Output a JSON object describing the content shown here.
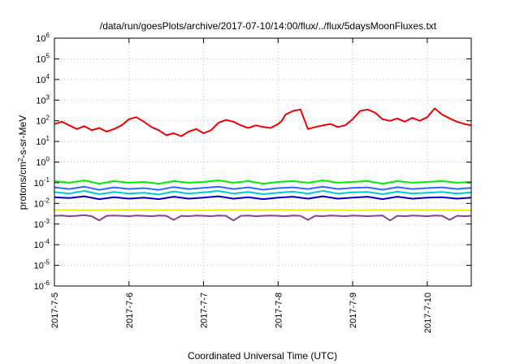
{
  "chart_data": {
    "type": "line",
    "title": "/data/run/goesPlots/archive/2017-07-10/14:00/flux/../flux/5daysMoonFluxes.txt",
    "xlabel": "Coordinated Universal Time (UTC)",
    "ylabel": {
      "prefix": "protons/cm",
      "superscript": "2",
      "suffix": "-s-sr-MeV"
    },
    "x_tick_labels": [
      "2017-7-5",
      "2017-7-6",
      "2017-7-7",
      "2017-7-8",
      "2017-7-9",
      "2017-7-10"
    ],
    "x_tick_values": [
      0,
      1,
      2,
      3,
      4,
      5
    ],
    "xlim": [
      0,
      5.59
    ],
    "y_scale": "log",
    "ylim": [
      1e-06,
      1000000.0
    ],
    "y_tick_labels": [
      {
        "base": "10",
        "exp": "6"
      },
      {
        "base": "10",
        "exp": "5"
      },
      {
        "base": "10",
        "exp": "4"
      },
      {
        "base": "10",
        "exp": "3"
      },
      {
        "base": "10",
        "exp": "2"
      },
      {
        "base": "10",
        "exp": "1"
      },
      {
        "base": "10",
        "exp": "0"
      },
      {
        "base": "10",
        "exp": "-1"
      },
      {
        "base": "10",
        "exp": "-2"
      },
      {
        "base": "10",
        "exp": "-3"
      },
      {
        "base": "10",
        "exp": "-4"
      },
      {
        "base": "10",
        "exp": "-5"
      },
      {
        "base": "10",
        "exp": "-6"
      }
    ],
    "grid": true,
    "series": [
      {
        "color": "#ee0000",
        "x": [
          0,
          0.1,
          0.2,
          0.3,
          0.4,
          0.5,
          0.6,
          0.7,
          0.8,
          0.9,
          1.0,
          1.1,
          1.2,
          1.3,
          1.4,
          1.5,
          1.6,
          1.7,
          1.8,
          1.9,
          2.0,
          2.1,
          2.2,
          2.3,
          2.4,
          2.5,
          2.6,
          2.7,
          2.8,
          2.9,
          3.0,
          3.05,
          3.1,
          3.2,
          3.3,
          3.4,
          3.5,
          3.6,
          3.7,
          3.8,
          3.9,
          4.0,
          4.1,
          4.2,
          4.3,
          4.4,
          4.5,
          4.6,
          4.7,
          4.8,
          4.9,
          5.0,
          5.1,
          5.2,
          5.3,
          5.4,
          5.5,
          5.59
        ],
        "values": [
          70,
          90,
          60,
          40,
          55,
          35,
          45,
          30,
          40,
          60,
          120,
          150,
          90,
          50,
          35,
          20,
          25,
          18,
          30,
          40,
          25,
          35,
          80,
          110,
          90,
          60,
          45,
          60,
          50,
          45,
          70,
          100,
          200,
          300,
          350,
          40,
          50,
          60,
          70,
          50,
          60,
          120,
          300,
          350,
          250,
          120,
          100,
          130,
          90,
          140,
          100,
          150,
          400,
          200,
          130,
          90,
          70,
          60
        ]
      },
      {
        "color": "#00ee00",
        "x": [
          0,
          0.2,
          0.4,
          0.6,
          0.8,
          1.0,
          1.2,
          1.4,
          1.6,
          1.8,
          2.0,
          2.2,
          2.4,
          2.6,
          2.8,
          3.0,
          3.2,
          3.4,
          3.6,
          3.8,
          4.0,
          4.2,
          4.4,
          4.6,
          4.8,
          5.0,
          5.2,
          5.4,
          5.59
        ],
        "values": [
          0.12,
          0.1,
          0.13,
          0.09,
          0.12,
          0.1,
          0.11,
          0.09,
          0.12,
          0.1,
          0.11,
          0.13,
          0.1,
          0.12,
          0.09,
          0.11,
          0.12,
          0.1,
          0.13,
          0.1,
          0.11,
          0.12,
          0.09,
          0.12,
          0.1,
          0.11,
          0.12,
          0.1,
          0.11
        ]
      },
      {
        "color": "#00cccc",
        "x": [
          0,
          0.2,
          0.4,
          0.6,
          0.8,
          1.0,
          1.2,
          1.4,
          1.6,
          1.8,
          2.0,
          2.2,
          2.4,
          2.6,
          2.8,
          3.0,
          3.2,
          3.4,
          3.6,
          3.8,
          4.0,
          4.2,
          4.4,
          4.6,
          4.8,
          5.0,
          5.2,
          5.4,
          5.59
        ],
        "values": [
          0.035,
          0.03,
          0.04,
          0.028,
          0.036,
          0.03,
          0.033,
          0.027,
          0.038,
          0.03,
          0.034,
          0.04,
          0.03,
          0.036,
          0.028,
          0.033,
          0.037,
          0.03,
          0.04,
          0.03,
          0.034,
          0.036,
          0.028,
          0.037,
          0.03,
          0.033,
          0.036,
          0.03,
          0.034
        ]
      },
      {
        "color": "#3366ff",
        "x": [
          0,
          0.2,
          0.4,
          0.6,
          0.8,
          1.0,
          1.2,
          1.4,
          1.6,
          1.8,
          2.0,
          2.2,
          2.4,
          2.6,
          2.8,
          3.0,
          3.2,
          3.4,
          3.6,
          3.8,
          4.0,
          4.2,
          4.4,
          4.6,
          4.8,
          5.0,
          5.2,
          5.4,
          5.59
        ],
        "values": [
          0.06,
          0.05,
          0.065,
          0.045,
          0.06,
          0.05,
          0.055,
          0.045,
          0.062,
          0.05,
          0.056,
          0.065,
          0.05,
          0.06,
          0.046,
          0.055,
          0.06,
          0.05,
          0.065,
          0.05,
          0.056,
          0.06,
          0.046,
          0.061,
          0.05,
          0.055,
          0.06,
          0.05,
          0.056
        ]
      },
      {
        "color": "#0000cc",
        "x": [
          0,
          0.2,
          0.4,
          0.6,
          0.8,
          1.0,
          1.2,
          1.4,
          1.6,
          1.8,
          2.0,
          2.2,
          2.4,
          2.6,
          2.8,
          3.0,
          3.2,
          3.4,
          3.6,
          3.8,
          4.0,
          4.2,
          4.4,
          4.6,
          4.8,
          5.0,
          5.2,
          5.4,
          5.59
        ],
        "values": [
          0.02,
          0.018,
          0.022,
          0.016,
          0.02,
          0.017,
          0.019,
          0.016,
          0.021,
          0.017,
          0.019,
          0.022,
          0.017,
          0.02,
          0.016,
          0.019,
          0.021,
          0.017,
          0.022,
          0.017,
          0.019,
          0.021,
          0.016,
          0.021,
          0.017,
          0.019,
          0.02,
          0.017,
          0.019
        ]
      },
      {
        "color": "#eeee00",
        "x": [
          0,
          0.5,
          1.0,
          1.5,
          2.0,
          2.5,
          3.0,
          3.5,
          4.0,
          4.5,
          5.0,
          5.59
        ],
        "values": [
          0.0048,
          0.0047,
          0.0049,
          0.0048,
          0.0047,
          0.0048,
          0.0049,
          0.0048,
          0.0047,
          0.0048,
          0.0048,
          0.0047
        ]
      },
      {
        "color": "#884488",
        "x": [
          0,
          0.1,
          0.2,
          0.3,
          0.4,
          0.5,
          0.6,
          0.7,
          0.8,
          0.9,
          1.0,
          1.1,
          1.2,
          1.3,
          1.4,
          1.5,
          1.6,
          1.7,
          1.8,
          1.9,
          2.0,
          2.1,
          2.2,
          2.3,
          2.4,
          2.5,
          2.6,
          2.7,
          2.8,
          2.9,
          3.0,
          3.1,
          3.2,
          3.3,
          3.4,
          3.5,
          3.6,
          3.7,
          3.8,
          3.9,
          4.0,
          4.1,
          4.2,
          4.3,
          4.4,
          4.5,
          4.6,
          4.7,
          4.8,
          4.9,
          5.0,
          5.1,
          5.2,
          5.3,
          5.4,
          5.5,
          5.59
        ],
        "values": [
          0.0025,
          0.0026,
          0.0024,
          0.0025,
          0.0027,
          0.0024,
          0.0015,
          0.0025,
          0.0026,
          0.0025,
          0.0024,
          0.0026,
          0.0025,
          0.0024,
          0.0026,
          0.0025,
          0.0016,
          0.0025,
          0.0024,
          0.0026,
          0.0025,
          0.0024,
          0.0026,
          0.0025,
          0.0015,
          0.0025,
          0.0026,
          0.0024,
          0.0025,
          0.0026,
          0.0025,
          0.0024,
          0.0026,
          0.0025,
          0.0016,
          0.0025,
          0.0024,
          0.0026,
          0.0025,
          0.0024,
          0.0026,
          0.0025,
          0.0024,
          0.0025,
          0.0026,
          0.0015,
          0.0025,
          0.0024,
          0.0026,
          0.0025,
          0.0024,
          0.0026,
          0.0025,
          0.0016,
          0.0025,
          0.0024,
          0.0025
        ]
      }
    ]
  }
}
